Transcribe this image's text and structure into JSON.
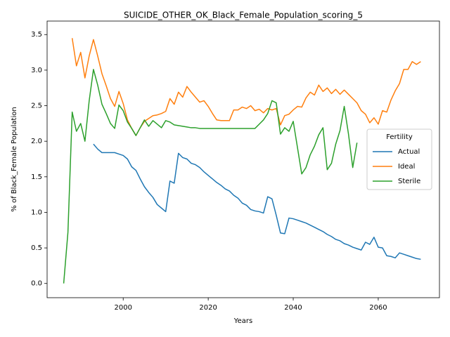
{
  "chart_data": {
    "type": "line",
    "title": "SUICIDE_OTHER_OK_Black_Female_Population_scoring_5",
    "x_label": "Years",
    "y_label": "% of Black_Female Population",
    "legend_title": "Fertility",
    "legend": "center right",
    "xlim": [
      1982.1,
      2074.4
    ],
    "ylim": [
      -0.2,
      3.69
    ],
    "xticks": [
      2000,
      2020,
      2040,
      2060
    ],
    "yticks": [
      {
        "value": 0,
        "label": "0.0"
      },
      0.5,
      {
        "value": 1,
        "label": "1.0"
      },
      1.5,
      {
        "value": 2,
        "label": "2.0"
      },
      2.5,
      {
        "value": 3,
        "label": "3.0"
      },
      3.5
    ],
    "x": [
      1986,
      1987,
      1988,
      1989,
      1990,
      1991,
      1992,
      1993,
      1994,
      1995,
      1996,
      1997,
      1998,
      1999,
      2000,
      2001,
      2002,
      2003,
      2004,
      2005,
      2006,
      2007,
      2008,
      2009,
      2010,
      2011,
      2012,
      2013,
      2014,
      2015,
      2016,
      2017,
      2018,
      2019,
      2020,
      2021,
      2022,
      2023,
      2024,
      2025,
      2026,
      2027,
      2028,
      2029,
      2030,
      2031,
      2032,
      2033,
      2034,
      2035,
      2036,
      2037,
      2038,
      2039,
      2040,
      2041,
      2042,
      2043,
      2044,
      2045,
      2046,
      2047,
      2048,
      2049,
      2050,
      2051,
      2052,
      2053,
      2054,
      2055,
      2056,
      2057,
      2058,
      2059,
      2060,
      2061,
      2062,
      2063,
      2064,
      2065,
      2066,
      2067,
      2068,
      2069,
      2070
    ],
    "series": [
      {
        "name": "Actual",
        "color": "#1f77b4",
        "values": [
          null,
          null,
          null,
          null,
          null,
          null,
          null,
          1.96,
          1.89,
          1.84,
          1.84,
          1.84,
          1.84,
          1.82,
          1.8,
          1.75,
          1.64,
          1.59,
          1.47,
          1.36,
          1.28,
          1.21,
          1.11,
          1.06,
          1.01,
          1.44,
          1.41,
          1.83,
          1.77,
          1.75,
          1.69,
          1.67,
          1.63,
          1.57,
          1.52,
          1.47,
          1.42,
          1.38,
          1.33,
          1.3,
          1.24,
          1.2,
          1.13,
          1.1,
          1.04,
          1.02,
          1.01,
          0.99,
          1.22,
          1.19,
          0.96,
          0.71,
          0.7,
          0.92,
          0.91,
          0.89,
          0.87,
          0.85,
          0.82,
          0.79,
          0.76,
          0.73,
          0.69,
          0.66,
          0.62,
          0.6,
          0.56,
          0.54,
          0.51,
          0.49,
          0.47,
          0.58,
          0.55,
          0.65,
          0.51,
          0.5,
          0.39,
          0.38,
          0.36,
          0.43,
          0.41,
          0.39,
          0.37,
          0.35,
          0.34
        ]
      },
      {
        "name": "Ideal",
        "color": "#ff7f0e",
        "values": [
          null,
          null,
          3.45,
          3.06,
          3.25,
          2.89,
          3.2,
          3.43,
          3.2,
          2.95,
          2.78,
          2.6,
          2.49,
          2.7,
          2.53,
          2.3,
          2.18,
          2.08,
          2.19,
          2.28,
          2.32,
          2.36,
          2.37,
          2.39,
          2.42,
          2.6,
          2.52,
          2.69,
          2.62,
          2.77,
          2.69,
          2.62,
          2.55,
          2.57,
          2.49,
          2.39,
          2.3,
          2.29,
          2.29,
          2.29,
          2.44,
          2.44,
          2.48,
          2.46,
          2.5,
          2.43,
          2.45,
          2.4,
          2.46,
          2.44,
          2.46,
          2.23,
          2.36,
          2.38,
          2.44,
          2.49,
          2.48,
          2.61,
          2.69,
          2.65,
          2.79,
          2.7,
          2.75,
          2.67,
          2.73,
          2.66,
          2.72,
          2.66,
          2.6,
          2.54,
          2.43,
          2.38,
          2.26,
          2.33,
          2.24,
          2.43,
          2.41,
          2.58,
          2.71,
          2.81,
          3.01,
          3.01,
          3.12,
          3.08,
          3.12
        ]
      },
      {
        "name": "Sterile",
        "color": "#2ca02c",
        "values": [
          0.0,
          0.72,
          2.41,
          2.14,
          2.25,
          2.0,
          2.57,
          3.01,
          2.79,
          2.52,
          2.39,
          2.25,
          2.18,
          2.51,
          2.43,
          2.27,
          2.18,
          2.08,
          2.19,
          2.3,
          2.21,
          2.29,
          2.24,
          2.19,
          2.29,
          2.27,
          2.23,
          2.22,
          2.21,
          2.2,
          2.19,
          2.19,
          2.18,
          2.18,
          2.18,
          2.18,
          2.18,
          2.18,
          2.18,
          2.18,
          2.18,
          2.18,
          2.18,
          2.18,
          2.18,
          2.18,
          2.24,
          2.3,
          2.39,
          2.57,
          2.54,
          2.1,
          2.19,
          2.14,
          2.28,
          1.91,
          1.54,
          1.63,
          1.81,
          1.93,
          2.09,
          2.19,
          1.6,
          1.69,
          1.96,
          2.15,
          2.49,
          2.1,
          1.63,
          1.98,
          null,
          null,
          null,
          null,
          null,
          null,
          null,
          null,
          null,
          null,
          null,
          null,
          null,
          null,
          null
        ]
      }
    ]
  }
}
